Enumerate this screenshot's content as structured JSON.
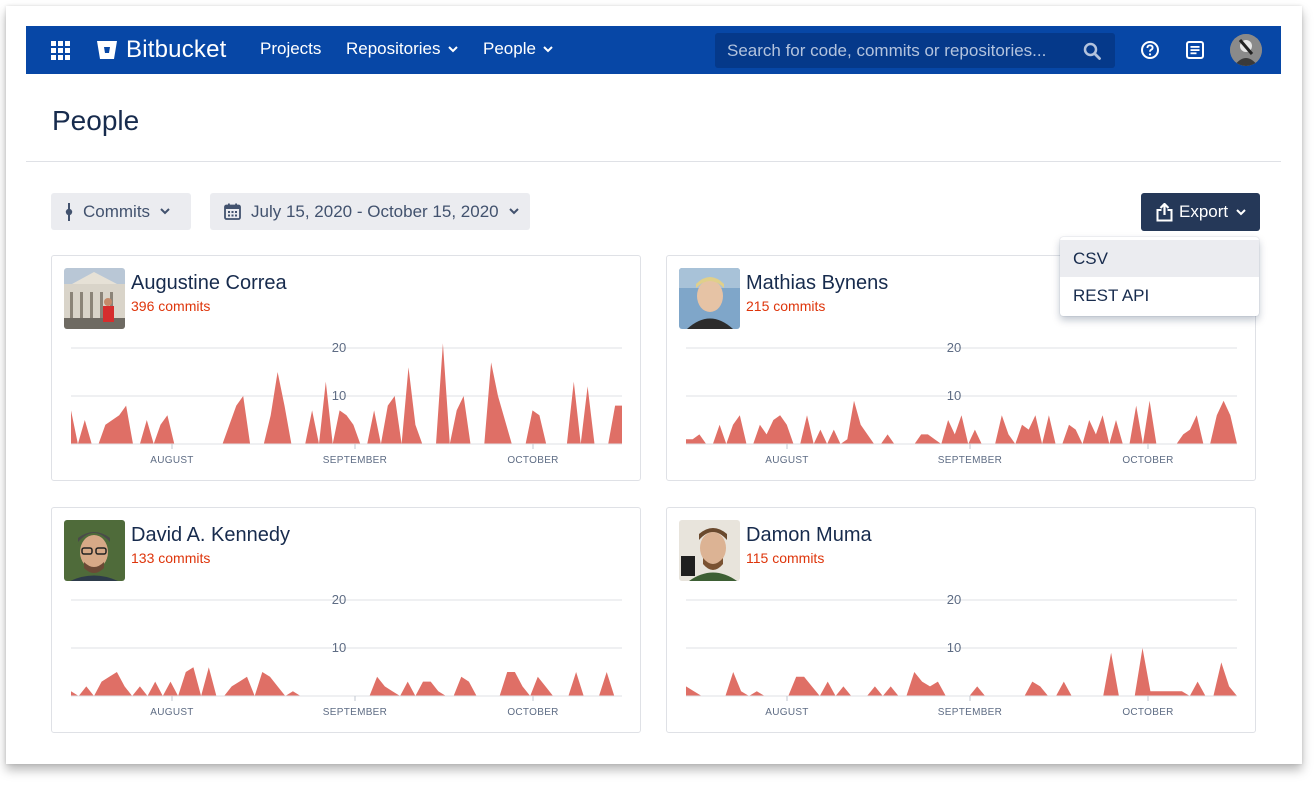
{
  "nav": {
    "brand": "Bitbucket",
    "items": [
      {
        "label": "Projects",
        "dropdown": false
      },
      {
        "label": "Repositories",
        "dropdown": true
      },
      {
        "label": "People",
        "dropdown": true
      }
    ],
    "search_placeholder": "Search for code, commits or repositories...",
    "colors": {
      "bar": "#0747a6",
      "search": "#05398a"
    },
    "icons": [
      "app-grid-icon",
      "bitbucket-logo-icon",
      "search-icon",
      "help-icon",
      "notes-icon",
      "user-avatar"
    ]
  },
  "page": {
    "title": "People"
  },
  "filters": {
    "metric": {
      "label": "Commits",
      "icon": "commit-icon"
    },
    "date_range": {
      "label": "July 15, 2020 - October 15, 2020",
      "icon": "calendar-icon"
    }
  },
  "export": {
    "label": "Export",
    "icon": "export-share-icon",
    "options": [
      {
        "label": "CSV",
        "highlighted": true
      },
      {
        "label": "REST API",
        "highlighted": false
      }
    ]
  },
  "colors": {
    "series": "#df6f66",
    "commits_text": "#de350b",
    "export_button": "#253858"
  },
  "people": [
    {
      "name": "Augustine Correa",
      "commits": "396 commits",
      "chart_data": {
        "type": "area",
        "x_start": "2020-07-15",
        "y_ticks": [
          10,
          20
        ],
        "x_ticks": [
          "AUGUST",
          "SEPTEMBER",
          "OCTOBER"
        ],
        "ylim": [
          0,
          20
        ],
        "values": [
          7,
          0,
          5,
          0,
          0,
          4,
          5,
          6,
          8,
          0,
          0,
          5,
          0,
          4,
          6,
          0,
          0,
          0,
          0,
          0,
          0,
          0,
          0,
          4,
          8,
          10,
          0,
          0,
          0,
          6,
          15,
          8,
          0,
          0,
          0,
          7,
          0,
          13,
          0,
          7,
          6,
          4,
          0,
          0,
          7,
          0,
          8,
          10,
          0,
          16,
          4,
          0,
          0,
          0,
          21,
          0,
          7,
          10,
          0,
          0,
          0,
          17,
          10,
          5,
          0,
          0,
          0,
          7,
          6,
          0,
          0,
          0,
          0,
          13,
          0,
          12,
          0,
          0,
          0,
          8,
          8
        ]
      }
    },
    {
      "name": "Mathias Bynens",
      "commits": "215 commits",
      "chart_data": {
        "type": "area",
        "x_start": "2020-07-15",
        "y_ticks": [
          10,
          20
        ],
        "x_ticks": [
          "AUGUST",
          "SEPTEMBER",
          "OCTOBER"
        ],
        "ylim": [
          0,
          20
        ],
        "values": [
          1,
          1,
          2,
          0,
          0,
          4,
          0,
          4,
          6,
          0,
          0,
          4,
          2,
          5,
          6,
          4,
          0,
          0,
          6,
          0,
          3,
          0,
          3,
          0,
          1,
          9,
          4,
          2,
          0,
          0,
          2,
          0,
          0,
          0,
          0,
          2,
          2,
          1,
          0,
          5,
          2,
          6,
          0,
          3,
          0,
          0,
          0,
          6,
          2,
          0,
          4,
          3,
          6,
          0,
          6,
          0,
          0,
          4,
          3,
          0,
          5,
          2,
          6,
          0,
          5,
          0,
          0,
          8,
          0,
          9,
          0,
          0,
          0,
          0,
          2,
          3,
          6,
          0,
          0,
          6,
          9,
          6,
          0
        ]
      }
    },
    {
      "name": "David A. Kennedy",
      "commits": "133 commits",
      "chart_data": {
        "type": "area",
        "x_start": "2020-07-15",
        "y_ticks": [
          10,
          20
        ],
        "x_ticks": [
          "AUGUST",
          "SEPTEMBER",
          "OCTOBER"
        ],
        "ylim": [
          0,
          20
        ],
        "values": [
          1,
          0,
          2,
          0,
          3,
          4,
          5,
          2,
          0,
          2,
          0,
          3,
          0,
          3,
          0,
          5,
          6,
          0,
          6,
          0,
          0,
          2,
          3,
          4,
          0,
          5,
          4,
          2,
          0,
          1,
          0,
          0,
          0,
          0,
          0,
          0,
          0,
          0,
          0,
          0,
          4,
          2,
          1,
          0,
          3,
          0,
          3,
          3,
          1,
          0,
          0,
          4,
          3,
          0,
          0,
          0,
          0,
          5,
          5,
          2,
          0,
          4,
          2,
          0,
          0,
          0,
          5,
          0,
          0,
          0,
          5,
          0,
          0
        ]
      }
    },
    {
      "name": "Damon Muma",
      "commits": "115 commits",
      "chart_data": {
        "type": "area",
        "x_start": "2020-07-15",
        "y_ticks": [
          10,
          20
        ],
        "x_ticks": [
          "AUGUST",
          "SEPTEMBER",
          "OCTOBER"
        ],
        "ylim": [
          0,
          20
        ],
        "values": [
          2,
          1,
          0,
          0,
          0,
          0,
          5,
          1,
          0,
          1,
          0,
          0,
          0,
          0,
          4,
          4,
          2,
          0,
          3,
          0,
          2,
          0,
          0,
          0,
          2,
          0,
          2,
          0,
          0,
          5,
          3,
          2,
          3,
          0,
          0,
          0,
          0,
          2,
          0,
          0,
          0,
          0,
          0,
          0,
          3,
          2,
          0,
          0,
          3,
          0,
          0,
          0,
          0,
          0,
          9,
          0,
          0,
          0,
          10,
          1,
          1,
          1,
          1,
          1,
          0,
          3,
          0,
          0,
          7,
          2,
          0
        ]
      }
    }
  ]
}
